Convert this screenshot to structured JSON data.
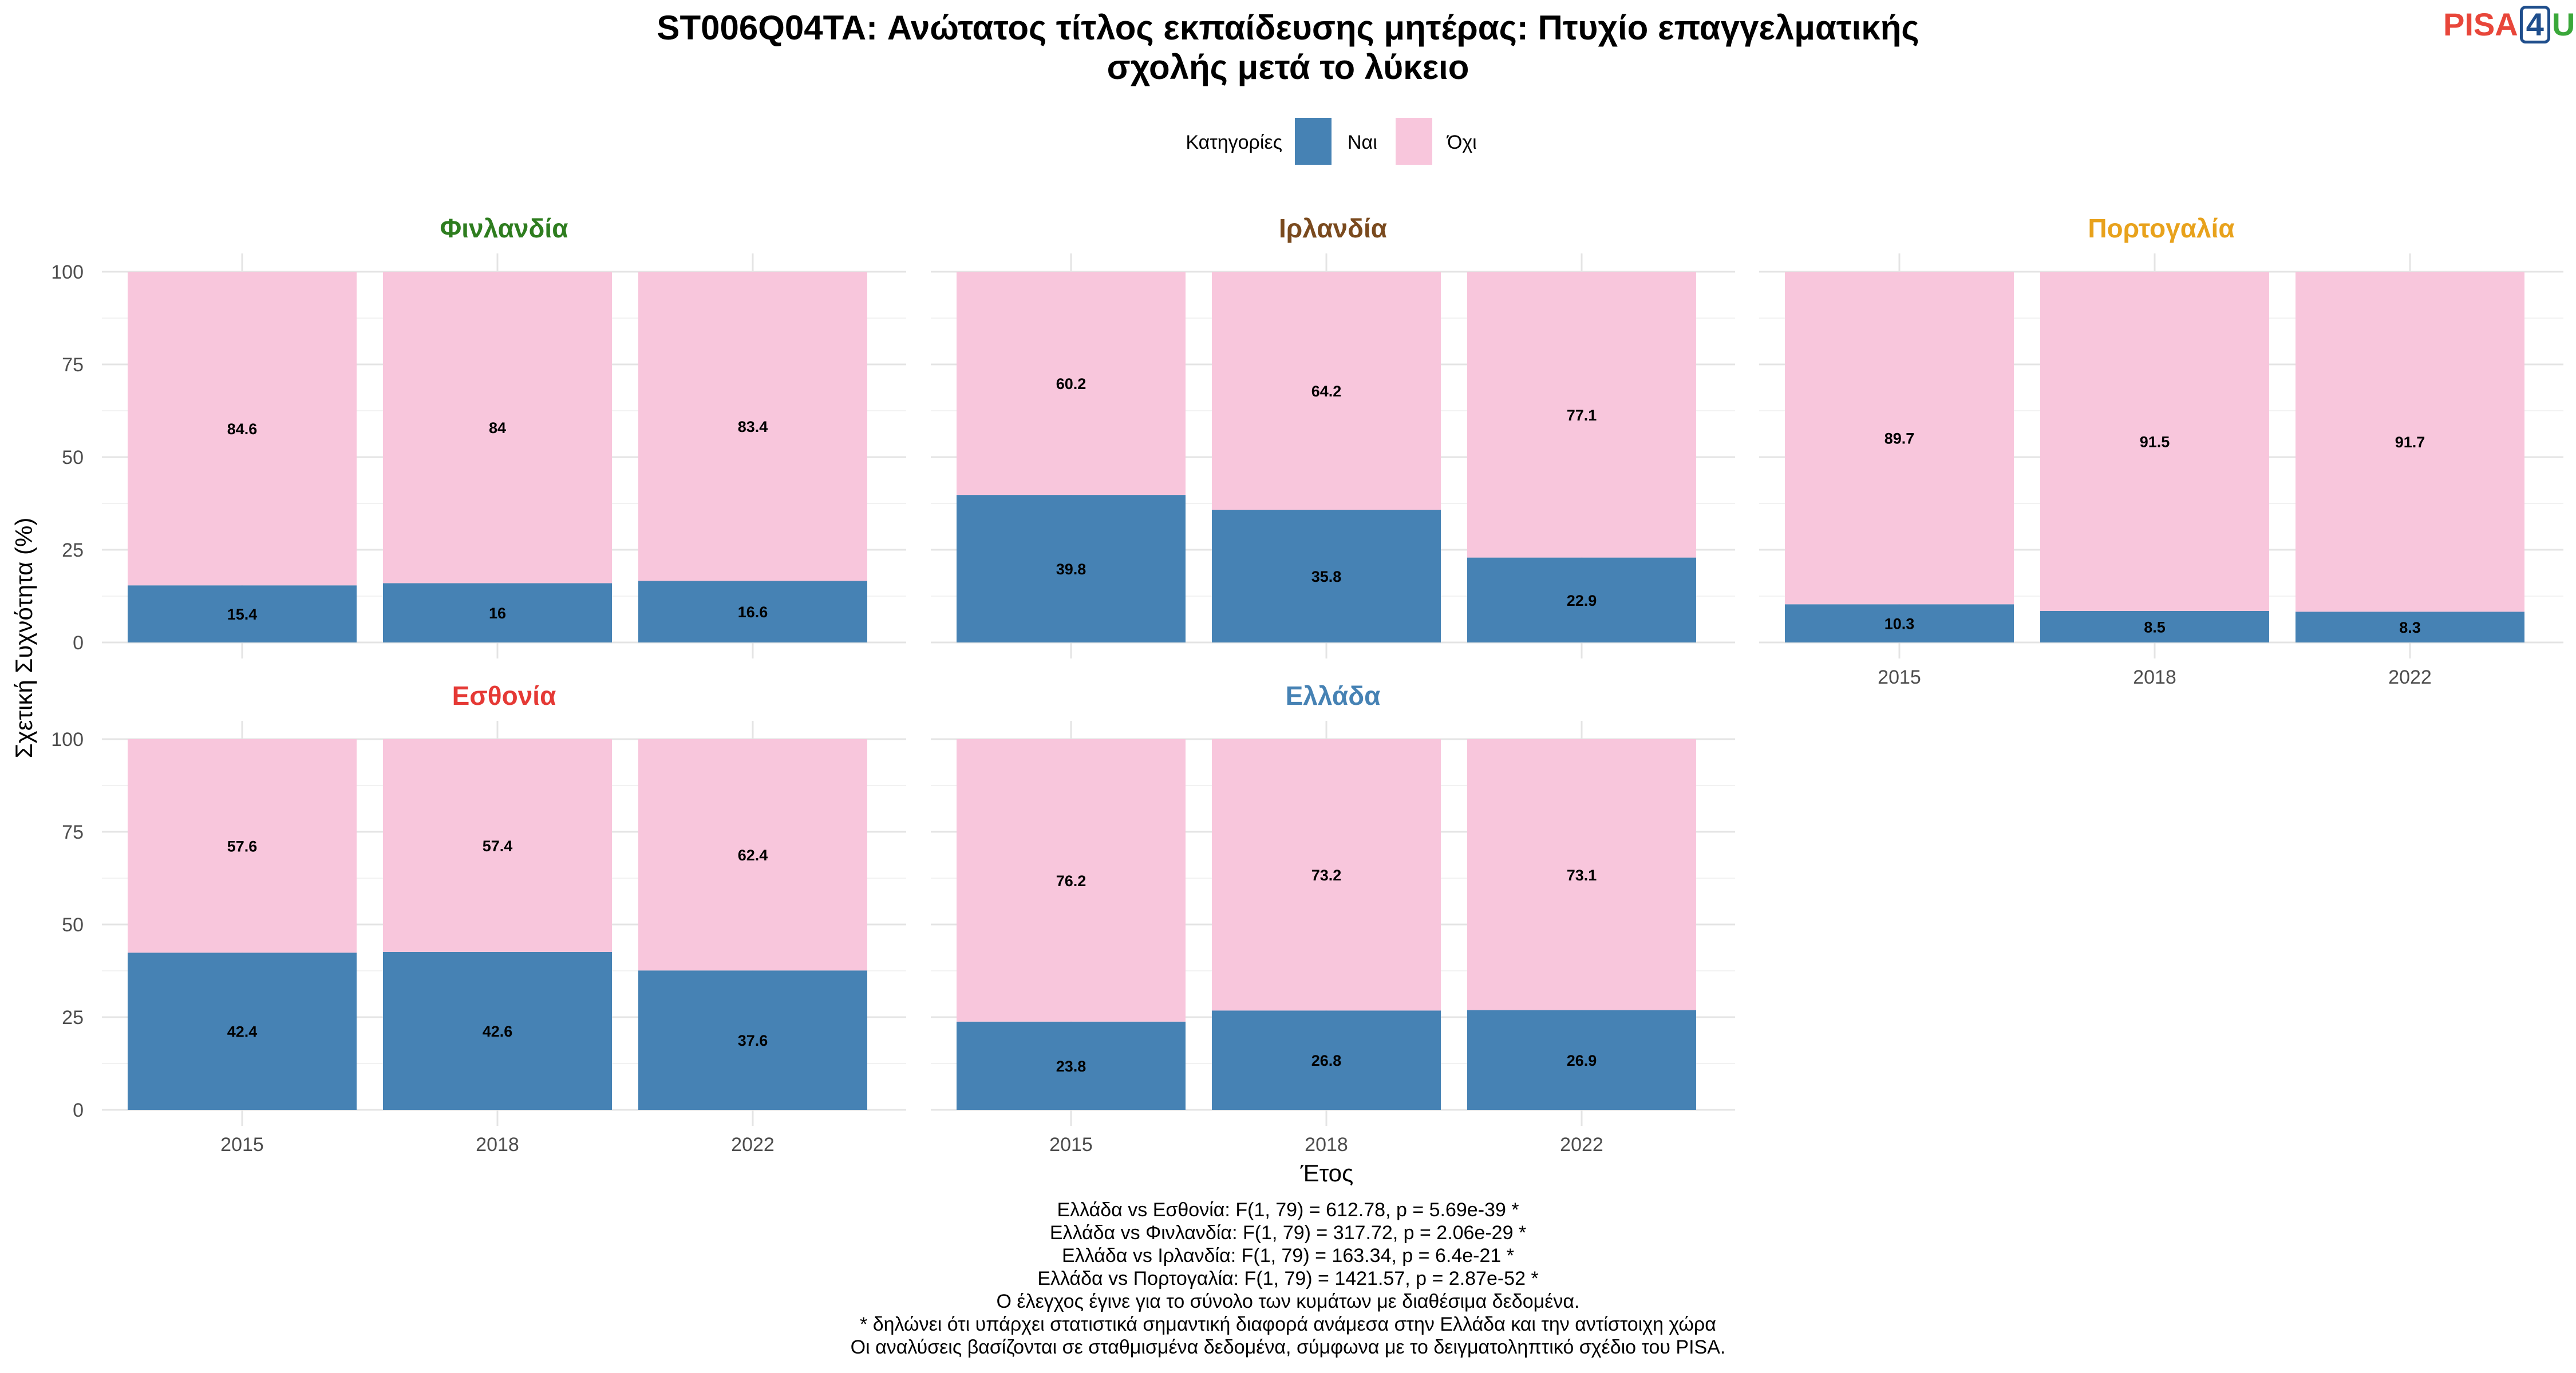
{
  "chart_data": {
    "type": "bar",
    "stacked": true,
    "title_lines": [
      "ST006Q04TA: Ανώτατος τίτλος εκπαίδευσης μητέρας: Πτυχίο επαγγελματικής",
      "σχολής μετά το λύκειο"
    ],
    "xlabel": "Έτος",
    "ylabel": "Σχετική Συχνότητα (%)",
    "ylim": [
      0,
      100
    ],
    "yticks": [
      "0",
      "25",
      "50",
      "75",
      "100"
    ],
    "categories": [
      "2015",
      "2018",
      "2022"
    ],
    "legend": {
      "title": "Κατηγορίες",
      "position": "top",
      "items": [
        {
          "label": "Ναι",
          "color": "#4682b4"
        },
        {
          "label": "Όχι",
          "color": "#f8c6dc"
        }
      ]
    },
    "panels": [
      {
        "name": "Φινλανδία",
        "color": "#2e7d1f",
        "nai": [
          15.4,
          16,
          16.6
        ],
        "oxi": [
          84.6,
          84,
          83.4
        ],
        "nai_labels": [
          "15.4",
          "16",
          "16.6"
        ],
        "oxi_labels": [
          "84.6",
          "84",
          "83.4"
        ]
      },
      {
        "name": "Ιρλανδία",
        "color": "#7a4a1e",
        "nai": [
          39.8,
          35.8,
          22.9
        ],
        "oxi": [
          60.2,
          64.2,
          77.1
        ],
        "nai_labels": [
          "39.8",
          "35.8",
          "22.9"
        ],
        "oxi_labels": [
          "60.2",
          "64.2",
          "77.1"
        ]
      },
      {
        "name": "Πορτογαλία",
        "color": "#e8a21c",
        "nai": [
          10.3,
          8.5,
          8.3
        ],
        "oxi": [
          89.7,
          91.5,
          91.7
        ],
        "nai_labels": [
          "10.3",
          "8.5",
          "8.3"
        ],
        "oxi_labels": [
          "89.7",
          "91.5",
          "91.7"
        ]
      },
      {
        "name": "Εσθονία",
        "color": "#e53935",
        "nai": [
          42.4,
          42.6,
          37.6
        ],
        "oxi": [
          57.6,
          57.4,
          62.4
        ],
        "nai_labels": [
          "42.4",
          "42.6",
          "37.6"
        ],
        "oxi_labels": [
          "57.6",
          "57.4",
          "62.4"
        ]
      },
      {
        "name": "Ελλάδα",
        "color": "#4682b4",
        "nai": [
          23.8,
          26.8,
          26.9
        ],
        "oxi": [
          76.2,
          73.2,
          73.1
        ],
        "nai_labels": [
          "23.8",
          "26.8",
          "26.9"
        ],
        "oxi_labels": [
          "76.2",
          "73.2",
          "73.1"
        ]
      }
    ]
  },
  "logo": {
    "part1": "PISA",
    "part2": "4",
    "part3": "U"
  },
  "footer_lines": [
    "Ελλάδα vs Εσθονία: F(1, 79) = 612.78, p = 5.69e-39 *",
    "Ελλάδα vs Φινλανδία: F(1, 79) = 317.72, p = 2.06e-29 *",
    "Ελλάδα vs Ιρλανδία: F(1, 79) = 163.34, p = 6.4e-21 *",
    "Ελλάδα vs Πορτογαλία: F(1, 79) = 1421.57, p = 2.87e-52 *",
    "Ο έλεγχος έγινε για το σύνολο των κυμάτων με διαθέσιμα δεδομένα.",
    "* δηλώνει ότι υπάρχει στατιστικά σημαντική διαφορά ανάμεσα στην Ελλάδα και την αντίστοιχη χώρα",
    "Οι αναλύσεις βασίζονται σε σταθμισμένα δεδομένα, σύμφωνα με το δειγματοληπτικό σχέδιο του PISA."
  ]
}
